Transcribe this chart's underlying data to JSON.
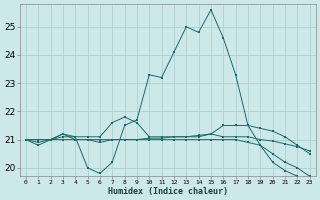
{
  "title": "",
  "xlabel": "Humidex (Indice chaleur)",
  "background_color": "#cce8e8",
  "grid_color": "#aacccc",
  "line_color": "#1a6b6b",
  "ylim": [
    19.7,
    25.8
  ],
  "xlim": [
    -0.5,
    23.5
  ],
  "lines": [
    [
      21.0,
      20.9,
      21.0,
      21.2,
      21.1,
      20.0,
      19.8,
      20.2,
      21.5,
      21.7,
      23.3,
      23.2,
      24.1,
      25.0,
      24.8,
      25.6,
      24.6,
      23.3,
      21.5,
      20.8,
      20.2,
      19.9,
      19.7,
      19.6
    ],
    [
      21.0,
      21.0,
      21.0,
      21.1,
      21.1,
      21.1,
      21.1,
      21.6,
      21.8,
      21.6,
      21.1,
      21.1,
      21.1,
      21.1,
      21.1,
      21.2,
      21.5,
      21.5,
      21.5,
      21.4,
      21.3,
      21.1,
      20.8,
      20.5
    ],
    [
      21.0,
      21.0,
      21.0,
      21.0,
      21.0,
      21.0,
      21.0,
      21.0,
      21.0,
      21.0,
      21.05,
      21.05,
      21.1,
      21.1,
      21.15,
      21.2,
      21.1,
      21.1,
      21.1,
      21.0,
      20.95,
      20.85,
      20.75,
      20.6
    ],
    [
      21.0,
      20.8,
      21.0,
      21.2,
      21.0,
      21.0,
      20.9,
      21.0,
      21.0,
      21.0,
      21.0,
      21.0,
      21.0,
      21.0,
      21.0,
      21.0,
      21.0,
      21.0,
      20.9,
      20.8,
      20.5,
      20.2,
      20.0,
      19.7
    ]
  ]
}
